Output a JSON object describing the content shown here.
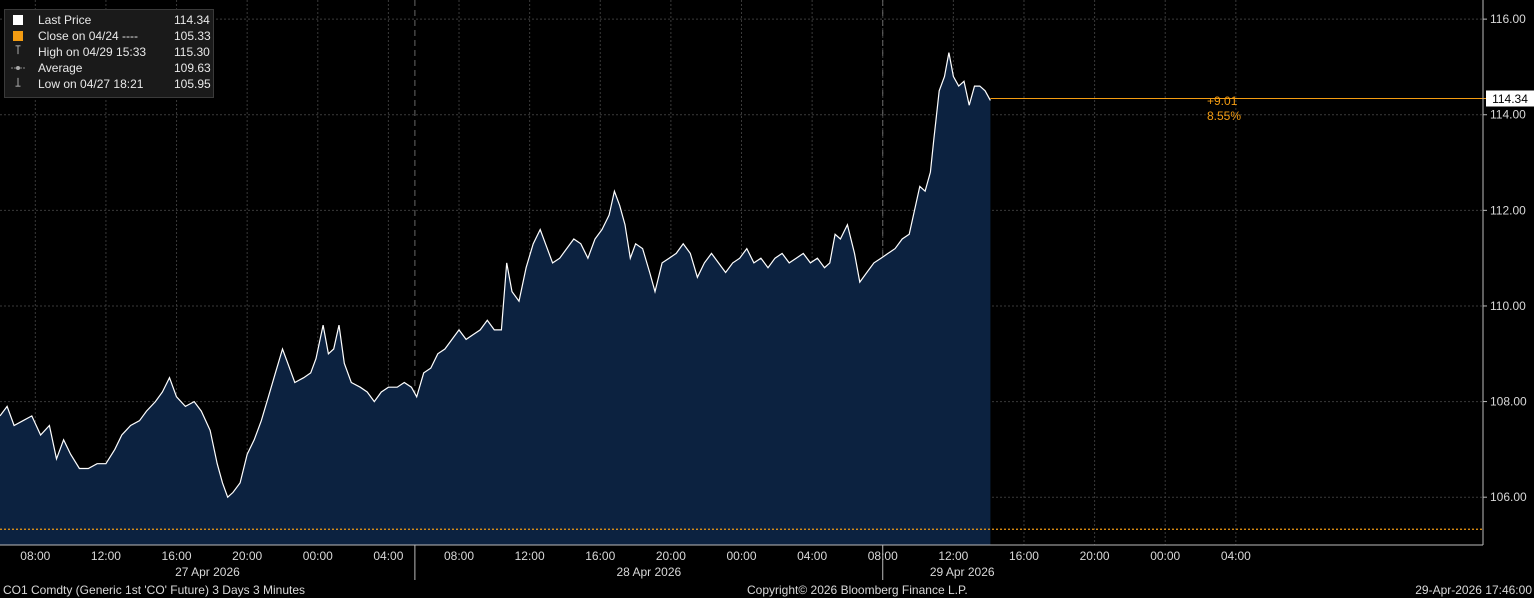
{
  "legend": {
    "last_price": {
      "label": "Last Price",
      "value": "114.34",
      "color": "#ffffff"
    },
    "close": {
      "label": "Close on 04/24 ----",
      "value": "105.33",
      "color": "#f39c12"
    },
    "high": {
      "label": "High on 04/29 15:33",
      "value": "115.30"
    },
    "average": {
      "label": "Average",
      "value": "109.63"
    },
    "low": {
      "label": "Low on 04/27 18:21",
      "value": "105.95"
    }
  },
  "price_tag": "114.34",
  "change": {
    "abs": "+9.01",
    "pct": "8.55%"
  },
  "footer": {
    "left": "CO1 Comdty (Generic 1st 'CO' Future) 3 Days 3 Minutes",
    "center": "Copyright© 2026 Bloomberg Finance L.P.",
    "right": "29-Apr-2026 17:46:00"
  },
  "chart_data": {
    "type": "area",
    "ylim": [
      105.0,
      116.4
    ],
    "y_ticks": [
      "106.00",
      "108.00",
      "110.00",
      "112.00",
      "114.00",
      "116.00"
    ],
    "x_tick_labels": [
      "08:00",
      "12:00",
      "16:00",
      "20:00",
      "00:00",
      "04:00",
      "08:00",
      "12:00",
      "16:00",
      "20:00",
      "00:00",
      "04:00",
      "08:00",
      "12:00",
      "16:00",
      "20:00",
      "00:00",
      "04:00"
    ],
    "date_labels": [
      "27 Apr 2026",
      "28 Apr 2026",
      "29 Apr 2026"
    ],
    "x_range_hours": [
      6.0,
      90.0
    ],
    "session_start_hours": [
      29.5,
      56.0
    ],
    "close_reference": 105.33,
    "last_price": 114.34,
    "colors": {
      "line": "#ffffff",
      "fill": "#0c2240",
      "close_line": "#f39c12",
      "last_line": "#f39c12",
      "grid": "#3a3a3a"
    },
    "series": [
      {
        "name": "Last Price",
        "points": [
          [
            6.0,
            107.7
          ],
          [
            6.4,
            107.9
          ],
          [
            6.8,
            107.5
          ],
          [
            7.3,
            107.6
          ],
          [
            7.8,
            107.7
          ],
          [
            8.3,
            107.3
          ],
          [
            8.8,
            107.5
          ],
          [
            9.2,
            106.8
          ],
          [
            9.6,
            107.2
          ],
          [
            10.0,
            106.9
          ],
          [
            10.5,
            106.6
          ],
          [
            11.0,
            106.6
          ],
          [
            11.5,
            106.7
          ],
          [
            12.0,
            106.7
          ],
          [
            12.5,
            107.0
          ],
          [
            12.9,
            107.3
          ],
          [
            13.4,
            107.5
          ],
          [
            13.9,
            107.6
          ],
          [
            14.3,
            107.8
          ],
          [
            14.8,
            108.0
          ],
          [
            15.2,
            108.2
          ],
          [
            15.6,
            108.5
          ],
          [
            16.0,
            108.1
          ],
          [
            16.5,
            107.9
          ],
          [
            17.0,
            108.0
          ],
          [
            17.4,
            107.8
          ],
          [
            17.9,
            107.4
          ],
          [
            18.3,
            106.7
          ],
          [
            18.6,
            106.3
          ],
          [
            18.9,
            106.0
          ],
          [
            19.2,
            106.1
          ],
          [
            19.6,
            106.3
          ],
          [
            20.0,
            106.9
          ],
          [
            20.4,
            107.2
          ],
          [
            20.8,
            107.6
          ],
          [
            21.2,
            108.1
          ],
          [
            21.6,
            108.6
          ],
          [
            22.0,
            109.1
          ],
          [
            22.3,
            108.8
          ],
          [
            22.7,
            108.4
          ],
          [
            23.2,
            108.5
          ],
          [
            23.6,
            108.6
          ],
          [
            23.9,
            108.9
          ],
          [
            24.3,
            109.6
          ],
          [
            24.6,
            109.0
          ],
          [
            24.9,
            109.1
          ],
          [
            25.2,
            109.6
          ],
          [
            25.5,
            108.8
          ],
          [
            25.9,
            108.4
          ],
          [
            26.4,
            108.3
          ],
          [
            26.8,
            108.2
          ],
          [
            27.2,
            108.0
          ],
          [
            27.6,
            108.2
          ],
          [
            28.0,
            108.3
          ],
          [
            28.5,
            108.3
          ],
          [
            28.9,
            108.4
          ],
          [
            29.3,
            108.3
          ],
          [
            29.6,
            108.1
          ],
          [
            30.0,
            108.6
          ],
          [
            30.4,
            108.7
          ],
          [
            30.8,
            109.0
          ],
          [
            31.2,
            109.1
          ],
          [
            31.6,
            109.3
          ],
          [
            32.0,
            109.5
          ],
          [
            32.4,
            109.3
          ],
          [
            32.8,
            109.4
          ],
          [
            33.2,
            109.5
          ],
          [
            33.6,
            109.7
          ],
          [
            34.0,
            109.5
          ],
          [
            34.4,
            109.5
          ],
          [
            34.7,
            110.9
          ],
          [
            35.0,
            110.3
          ],
          [
            35.4,
            110.1
          ],
          [
            35.8,
            110.8
          ],
          [
            36.2,
            111.3
          ],
          [
            36.6,
            111.6
          ],
          [
            36.9,
            111.3
          ],
          [
            37.3,
            110.9
          ],
          [
            37.7,
            111.0
          ],
          [
            38.1,
            111.2
          ],
          [
            38.5,
            111.4
          ],
          [
            38.9,
            111.3
          ],
          [
            39.3,
            111.0
          ],
          [
            39.7,
            111.4
          ],
          [
            40.1,
            111.6
          ],
          [
            40.5,
            111.9
          ],
          [
            40.8,
            112.4
          ],
          [
            41.1,
            112.1
          ],
          [
            41.4,
            111.7
          ],
          [
            41.7,
            111.0
          ],
          [
            42.0,
            111.3
          ],
          [
            42.4,
            111.2
          ],
          [
            42.8,
            110.7
          ],
          [
            43.1,
            110.3
          ],
          [
            43.5,
            110.9
          ],
          [
            43.9,
            111.0
          ],
          [
            44.3,
            111.1
          ],
          [
            44.7,
            111.3
          ],
          [
            45.1,
            111.1
          ],
          [
            45.5,
            110.6
          ],
          [
            45.9,
            110.9
          ],
          [
            46.3,
            111.1
          ],
          [
            46.7,
            110.9
          ],
          [
            47.1,
            110.7
          ],
          [
            47.5,
            110.9
          ],
          [
            47.9,
            111.0
          ],
          [
            48.3,
            111.2
          ],
          [
            48.7,
            110.9
          ],
          [
            49.1,
            111.0
          ],
          [
            49.5,
            110.8
          ],
          [
            49.9,
            111.0
          ],
          [
            50.3,
            111.1
          ],
          [
            50.7,
            110.9
          ],
          [
            51.1,
            111.0
          ],
          [
            51.5,
            111.1
          ],
          [
            51.9,
            110.9
          ],
          [
            52.3,
            111.0
          ],
          [
            52.7,
            110.8
          ],
          [
            53.0,
            110.9
          ],
          [
            53.3,
            111.5
          ],
          [
            53.6,
            111.4
          ],
          [
            54.0,
            111.7
          ],
          [
            54.4,
            111.1
          ],
          [
            54.7,
            110.5
          ],
          [
            55.1,
            110.7
          ],
          [
            55.5,
            110.9
          ],
          [
            55.9,
            111.0
          ],
          [
            56.3,
            111.1
          ],
          [
            56.7,
            111.2
          ],
          [
            57.1,
            111.4
          ],
          [
            57.5,
            111.5
          ],
          [
            57.8,
            112.0
          ],
          [
            58.1,
            112.5
          ],
          [
            58.4,
            112.4
          ],
          [
            58.7,
            112.8
          ],
          [
            58.9,
            113.5
          ],
          [
            59.2,
            114.5
          ],
          [
            59.5,
            114.8
          ],
          [
            59.75,
            115.3
          ],
          [
            60.0,
            114.8
          ],
          [
            60.3,
            114.6
          ],
          [
            60.6,
            114.7
          ],
          [
            60.9,
            114.2
          ],
          [
            61.2,
            114.6
          ],
          [
            61.5,
            114.6
          ],
          [
            61.8,
            114.5
          ],
          [
            62.1,
            114.3
          ]
        ]
      }
    ]
  }
}
